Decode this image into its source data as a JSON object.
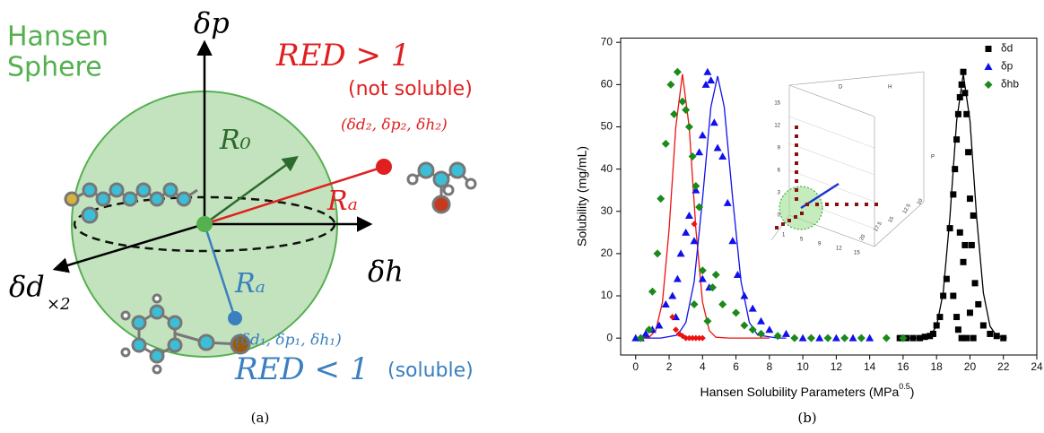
{
  "diagram": {
    "axis_p": "δp",
    "axis_h": "δh",
    "axis_d": "δd",
    "axis_d_note": "×2",
    "sphere_title": [
      "Hansen",
      "Sphere"
    ],
    "radius": "R₀",
    "ra_red": "Rₐ",
    "ra_blue": "Rₐ",
    "red_condition": "RED > 1",
    "red_note": "(not soluble)",
    "point2": "(δd₂, δp₂, δh₂)",
    "point1": "(δd₁, δp₁, δh₁)",
    "blue_condition": "RED < 1",
    "blue_note": "(soluble)",
    "caption": "(a)"
  },
  "chart_data": {
    "type": "scatter",
    "caption": "(b)",
    "xlabel": [
      "Hansen Solubility Parameters (MPa",
      "0.5",
      ")"
    ],
    "ylabel": "Solubility (mg/mL)",
    "xlim": [
      -0.9,
      24
    ],
    "ylim": [
      -4,
      71
    ],
    "xticks": [
      0,
      2,
      4,
      6,
      8,
      10,
      12,
      14,
      16,
      18,
      20,
      22,
      24
    ],
    "yticks": [
      0,
      10,
      20,
      30,
      40,
      50,
      60,
      70
    ],
    "legend": "top-right",
    "series": [
      {
        "name": "δd",
        "color": "#000000",
        "marker": "square",
        "x": [
          15.8,
          16.2,
          16.6,
          17,
          17.3,
          17.6,
          17.8,
          18,
          18.2,
          18.4,
          18.6,
          18.8,
          19,
          19.1,
          19.2,
          19.3,
          19.4,
          19.5,
          19.6,
          19.7,
          19.8,
          19.9,
          20,
          20.1,
          20.3,
          20.5,
          20.8,
          21.2,
          21.6,
          22,
          19,
          19.2,
          19.3,
          19.5,
          19.8,
          20,
          20.2,
          19.4,
          19.6,
          19.7,
          20.2
        ],
        "values": [
          0,
          0,
          0,
          0,
          0.3,
          0.5,
          1,
          3,
          5,
          10,
          14,
          26,
          34,
          40,
          47,
          53,
          57,
          60,
          63,
          58,
          53,
          44,
          33,
          22,
          13,
          8,
          3,
          1,
          0.5,
          0,
          10,
          5,
          2,
          0,
          0,
          6,
          0,
          25,
          18,
          22,
          29
        ]
      },
      {
        "name": "δp",
        "color": "#1010ee",
        "marker": "triangle",
        "x": [
          0,
          0.3,
          0.6,
          1,
          1.4,
          1.8,
          2.2,
          2.5,
          2.7,
          3,
          3.2,
          3.6,
          3.8,
          4,
          4.2,
          4.3,
          4.5,
          4.7,
          4.9,
          5.2,
          5.5,
          5.8,
          6.1,
          6.5,
          7,
          7.5,
          8,
          9,
          10,
          11,
          12,
          13,
          14,
          4,
          4.4,
          3.5,
          2.4
        ],
        "values": [
          0,
          0,
          1,
          2,
          3,
          8,
          10,
          14,
          20,
          25,
          29,
          35,
          44,
          48,
          60,
          63,
          61,
          51,
          45,
          43,
          32,
          23,
          15,
          10,
          7,
          4,
          2,
          1,
          0,
          0,
          0,
          0,
          0,
          14,
          12,
          23,
          5
        ]
      },
      {
        "name": "δhb",
        "color": "#1a8a1a",
        "marker": "diamond",
        "x": [
          0.3,
          0.8,
          1,
          1.3,
          1.5,
          1.8,
          2.1,
          2.3,
          2.5,
          2.8,
          3,
          3.2,
          3.4,
          3.6,
          3.8,
          4,
          4.3,
          4.6,
          5.2,
          6,
          6.5,
          7,
          7.5,
          8.5,
          9.5,
          10.5,
          11.5,
          12.5,
          13.5,
          15,
          16,
          4.8,
          3.5
        ],
        "values": [
          0,
          2,
          11,
          20,
          33,
          46,
          60,
          53,
          63,
          56,
          54,
          50,
          43,
          36,
          31,
          16,
          4,
          12,
          8,
          6,
          3,
          2,
          1,
          0.5,
          0,
          0,
          0,
          0,
          0,
          0,
          0,
          15,
          8
        ]
      },
      {
        "color": "#ee1111",
        "marker": "diamond",
        "x": [
          2.2,
          2.4,
          2.6,
          2.8,
          3,
          3.2,
          3.4,
          3.6,
          3.8,
          4,
          3.5
        ],
        "values": [
          5,
          2,
          1,
          0.5,
          0,
          0,
          0,
          0,
          0,
          0,
          27
        ]
      }
    ],
    "fits": [
      {
        "color": "#ee1111",
        "x": [
          0,
          0.8,
          1.2,
          1.6,
          2,
          2.4,
          2.8,
          3.2,
          3.6,
          4,
          4.4,
          4.8,
          5.6,
          8
        ],
        "values": [
          0,
          0.2,
          1.8,
          8.5,
          25.7,
          50,
          62.5,
          50,
          25.7,
          8.5,
          1.8,
          0.2,
          0,
          0
        ]
      },
      {
        "color": "#1010ee",
        "x": [
          0,
          1.5,
          2.5,
          3,
          3.5,
          4,
          4.5,
          4.9,
          5.3,
          5.8,
          6.3,
          6.8,
          7.3,
          8.5,
          9
        ],
        "values": [
          0,
          0,
          0.7,
          3.7,
          13.4,
          33,
          54.7,
          62,
          54.7,
          33,
          13.4,
          3.7,
          0.7,
          0,
          0
        ]
      },
      {
        "color": "#000000",
        "x": [
          16,
          17,
          17.6,
          18,
          18.4,
          18.8,
          19.2,
          19.6,
          20,
          20.4,
          20.8,
          21.2,
          21.6,
          22.2
        ],
        "values": [
          0,
          0,
          0.5,
          2.8,
          10.7,
          28.6,
          51.4,
          62.5,
          51.4,
          28.6,
          10.7,
          2.8,
          0.5,
          0
        ]
      }
    ],
    "inset": {
      "axis_labels": [
        "D",
        "H",
        "P"
      ],
      "z_ticks": [
        "15",
        "12",
        "9",
        "6",
        "3",
        "0"
      ],
      "x_ticks": [
        "1",
        "5",
        "9",
        "12",
        "15"
      ],
      "y_ticks": [
        "20",
        "17.5",
        "15",
        "12.5",
        "10"
      ]
    }
  }
}
